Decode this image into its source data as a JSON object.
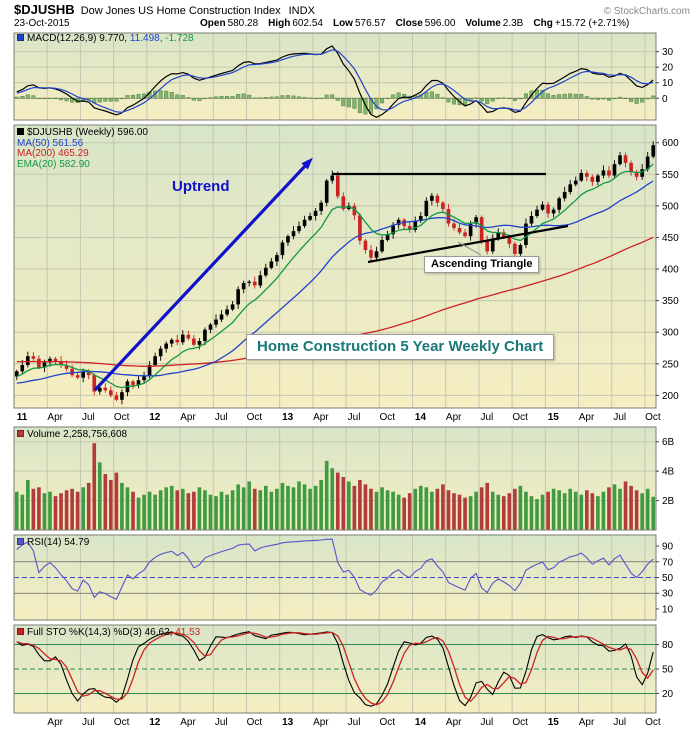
{
  "header": {
    "symbol": "$DJUSHB",
    "name": "Dow Jones US Home Construction Index",
    "exchange": "INDX",
    "credit": "© StockCharts.com",
    "date": "23-Oct-2015",
    "quote": [
      {
        "label": "Open",
        "value": "580.28"
      },
      {
        "label": "High",
        "value": "602.54"
      },
      {
        "label": "Low",
        "value": "576.57"
      },
      {
        "label": "Close",
        "value": "596.00"
      },
      {
        "label": "Volume",
        "value": "2.3B"
      },
      {
        "label": "Chg",
        "value": "+15.72 (+2.71%)"
      }
    ]
  },
  "panels": {
    "macd": {
      "label": "MACD(12,26,9)",
      "values": [
        "9.770,",
        "11.498,",
        "-1.728"
      ],
      "axis": [
        {
          "v": 30,
          "label": "30"
        },
        {
          "v": 20,
          "label": "20"
        },
        {
          "v": 10,
          "label": "10"
        },
        {
          "v": 0,
          "label": "0"
        }
      ]
    },
    "price": {
      "legend_symbol": "$DJUSHB (Weekly) 596.00",
      "legend_ma50": "MA(50) 561.56",
      "legend_ma200": "MA(200) 465.29",
      "legend_ema20": "EMA(20) 582.90",
      "axis": [
        {
          "v": 600,
          "label": "600"
        },
        {
          "v": 550,
          "label": "550"
        },
        {
          "v": 500,
          "label": "500"
        },
        {
          "v": 450,
          "label": "450"
        },
        {
          "v": 400,
          "label": "400"
        },
        {
          "v": 350,
          "label": "350"
        },
        {
          "v": 300,
          "label": "300"
        },
        {
          "v": 250,
          "label": "250"
        },
        {
          "v": 200,
          "label": "200"
        }
      ],
      "annotations": {
        "uptrend": "Uptrend",
        "triangle": "Ascending Triangle",
        "title_box": "Home Construction 5 Year Weekly Chart"
      }
    },
    "volume": {
      "label": "Volume",
      "value": "2,258,756,608",
      "axis": [
        {
          "v": 6,
          "label": "6B"
        },
        {
          "v": 4,
          "label": "4B"
        },
        {
          "v": 2,
          "label": "2B"
        }
      ]
    },
    "rsi": {
      "label": "RSI(14)",
      "value": "54.79",
      "axis": [
        {
          "v": 90,
          "label": "90"
        },
        {
          "v": 70,
          "label": "70"
        },
        {
          "v": 50,
          "label": "50"
        },
        {
          "v": 30,
          "label": "30"
        },
        {
          "v": 10,
          "label": "10"
        }
      ]
    },
    "sto": {
      "label": "Full STO %K(14,3) %D(3)",
      "values": [
        "46.62,",
        "41.53"
      ],
      "axis": [
        {
          "v": 80,
          "label": "80"
        },
        {
          "v": 50,
          "label": "50"
        },
        {
          "v": 20,
          "label": "20"
        }
      ]
    }
  },
  "chart_data": {
    "type": "candlestick-multi-panel",
    "timeframe": "weekly",
    "title": "Home Construction 5 Year Weekly Chart",
    "x_range": [
      "Jan-2011",
      "Oct-2015"
    ],
    "price_ylim": [
      200,
      600
    ],
    "last_close": 596.0,
    "overlays": [
      {
        "name": "MA(50)",
        "last": 561.56
      },
      {
        "name": "MA(200)",
        "last": 465.29
      },
      {
        "name": "EMA(20)",
        "last": 582.9
      }
    ],
    "indicators": [
      {
        "name": "MACD(12,26,9)",
        "last": [
          9.77,
          11.498,
          -1.728
        ],
        "axis_range": [
          0,
          30
        ]
      },
      {
        "name": "Volume",
        "last": 2258756608,
        "axis_range_billions": [
          2,
          6
        ]
      },
      {
        "name": "RSI(14)",
        "last": 54.79,
        "bands": [
          30,
          50,
          70
        ]
      },
      {
        "name": "Full STO %K(14,3) %D(3)",
        "last": [
          46.62,
          41.53
        ],
        "bands": [
          20,
          50,
          80
        ]
      }
    ],
    "closes": [
      238,
      248,
      262,
      258,
      244,
      252,
      258,
      254,
      248,
      242,
      232,
      228,
      238,
      232,
      206,
      212,
      208,
      200,
      193,
      205,
      222,
      216,
      224,
      230,
      248,
      262,
      274,
      282,
      288,
      284,
      296,
      290,
      280,
      286,
      304,
      312,
      320,
      328,
      336,
      344,
      368,
      378,
      380,
      374,
      390,
      402,
      412,
      422,
      442,
      452,
      460,
      468,
      478,
      484,
      492,
      505,
      540,
      548,
      515,
      495,
      500,
      485,
      445,
      430,
      418,
      428,
      446,
      455,
      470,
      478,
      468,
      462,
      476,
      484,
      508,
      516,
      505,
      495,
      472,
      465,
      458,
      452,
      472,
      482,
      445,
      428,
      448,
      458,
      450,
      440,
      424,
      438,
      472,
      484,
      494,
      502,
      488,
      494,
      512,
      522,
      534,
      540,
      552,
      546,
      538,
      548,
      556,
      548,
      566,
      580,
      568,
      554,
      546,
      558,
      578,
      596
    ],
    "volumes_billions": [
      2.6,
      2.4,
      3.4,
      2.8,
      2.9,
      2.5,
      2.6,
      2.3,
      2.5,
      2.7,
      2.8,
      2.6,
      2.9,
      3.2,
      5.9,
      4.6,
      3.8,
      3.4,
      3.9,
      3.2,
      2.9,
      2.6,
      2.2,
      2.4,
      2.6,
      2.4,
      2.7,
      2.9,
      3.0,
      2.7,
      2.8,
      2.5,
      2.6,
      2.9,
      2.7,
      2.4,
      2.3,
      2.6,
      2.4,
      2.7,
      3.1,
      2.9,
      3.3,
      2.8,
      2.7,
      3.0,
      2.6,
      2.8,
      3.2,
      3.0,
      2.9,
      3.3,
      3.1,
      2.8,
      3.0,
      3.4,
      4.7,
      4.2,
      3.9,
      3.6,
      3.3,
      3.0,
      3.4,
      3.1,
      2.8,
      2.6,
      2.9,
      2.7,
      2.6,
      2.4,
      2.2,
      2.5,
      2.8,
      3.0,
      2.9,
      2.6,
      2.8,
      3.1,
      2.7,
      2.5,
      2.4,
      2.2,
      2.3,
      2.6,
      2.9,
      3.2,
      2.6,
      2.4,
      2.3,
      2.5,
      2.8,
      3.0,
      2.6,
      2.3,
      2.1,
      2.4,
      2.6,
      2.8,
      2.7,
      2.5,
      2.8,
      2.6,
      2.4,
      2.7,
      2.5,
      2.3,
      2.6,
      2.9,
      3.1,
      2.8,
      3.3,
      3.0,
      2.7,
      2.5,
      2.8,
      2.26
    ],
    "x_ticks": {
      "indices": [
        0,
        6,
        12,
        18,
        24,
        30,
        36,
        42,
        48,
        54,
        60,
        66,
        72,
        78,
        84,
        90,
        96,
        102,
        108,
        114
      ],
      "labels": [
        "11",
        "Apr",
        "Jul",
        "Oct",
        "12",
        "Apr",
        "Jul",
        "Oct",
        "13",
        "Apr",
        "Jul",
        "Oct",
        "14",
        "Apr",
        "Jul",
        "Oct",
        "15",
        "Apr",
        "Jul",
        "Oct"
      ]
    },
    "colors": {
      "candle_up": "#000000",
      "candle_down": "#cc2222",
      "ma50": "#2244cc",
      "ma200": "#cc2222",
      "ema20": "#119944",
      "macd_line": "#000000",
      "macd_signal": "#2244cc",
      "macd_hist": "#7db36a",
      "volume_up": "#3f9b3f",
      "volume_down": "#b23b3b",
      "rsi": "#5555cc",
      "sto_k": "#000000",
      "sto_d": "#cc2222",
      "annotation_blue": "#1111cc",
      "title_teal": "#1a7878",
      "bg_green": "#d8e5c8",
      "bg_yellow": "#f6eec2"
    }
  }
}
